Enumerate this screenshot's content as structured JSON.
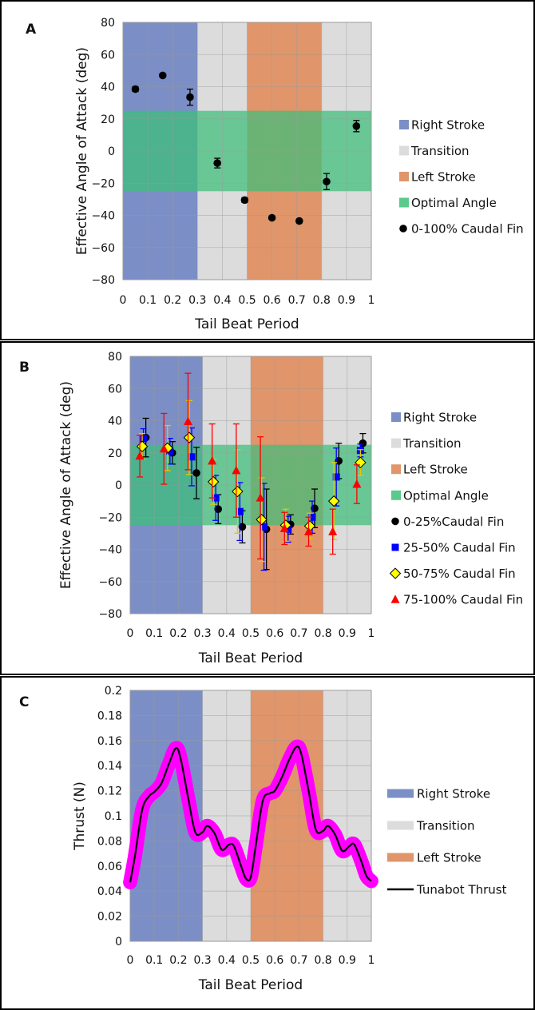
{
  "colors": {
    "right_stroke": "#7b8fc6",
    "transition": "#dcdcdc",
    "left_stroke": "#e0956a",
    "optimal": "#3cbf78",
    "series": [
      "#000000",
      "#0000ff",
      "#ffff00",
      "#ff0000"
    ],
    "thrust_band": "#ff00ff"
  },
  "chart_data": [
    {
      "panel": "A",
      "type": "scatter",
      "xlabel": "Tail Beat Period",
      "ylabel": "Effective Angle of Attack (deg)",
      "xlim": [
        0,
        1
      ],
      "ylim": [
        -80,
        80
      ],
      "xticks": [
        "0",
        "0.1",
        "0.2",
        "0.3",
        "0.4",
        "0.5",
        "0.6",
        "0.7",
        "0.8",
        "0.9",
        "1"
      ],
      "yticks": [
        "80",
        "60",
        "40",
        "20",
        "0",
        "−20",
        "−40",
        "−60",
        "−80"
      ],
      "regions": [
        {
          "label": "Right Stroke",
          "x": [
            0,
            0.3
          ],
          "y": [
            -80,
            80
          ]
        },
        {
          "label": "Transition",
          "x": [
            0.3,
            0.5
          ],
          "y": [
            -80,
            80
          ]
        },
        {
          "label": "Left Stroke",
          "x": [
            0.5,
            0.8
          ],
          "y": [
            -80,
            80
          ]
        },
        {
          "label": "Transition",
          "x": [
            0.8,
            1.0
          ],
          "y": [
            -80,
            80
          ]
        },
        {
          "label": "Optimal Angle",
          "x": [
            0,
            1
          ],
          "y": [
            -25,
            25
          ]
        }
      ],
      "legend": [
        "Right Stroke",
        "Transition",
        "Left Stroke",
        "Optimal Angle",
        "0-100% Caudal Fin"
      ],
      "series": [
        {
          "name": "0-100% Caudal Fin",
          "marker": "circle",
          "x": [
            0.05,
            0.16,
            0.27,
            0.38,
            0.49,
            0.6,
            0.71,
            0.82,
            0.94
          ],
          "y": [
            38.5,
            47,
            33.5,
            -7.5,
            -30.5,
            -41.5,
            -43.5,
            -19,
            15.5
          ],
          "err": [
            1.5,
            1,
            5,
            3,
            1.5,
            1,
            1,
            5,
            3.5
          ]
        }
      ]
    },
    {
      "panel": "B",
      "type": "scatter",
      "xlabel": "Tail Beat Period",
      "ylabel": "Effective Angle of Attack (deg)",
      "xlim": [
        0,
        1
      ],
      "ylim": [
        -80,
        80
      ],
      "xticks": [
        "0",
        "0.1",
        "0.2",
        "0.3",
        "0.4",
        "0.5",
        "0.6",
        "0.7",
        "0.8",
        "0.9",
        "1"
      ],
      "yticks": [
        "80",
        "60",
        "40",
        "20",
        "0",
        "−20",
        "−40",
        "−60",
        "−80"
      ],
      "regions": [
        {
          "label": "Right Stroke",
          "x": [
            0,
            0.3
          ],
          "y": [
            -80,
            80
          ]
        },
        {
          "label": "Transition",
          "x": [
            0.3,
            0.5
          ],
          "y": [
            -80,
            80
          ]
        },
        {
          "label": "Left Stroke",
          "x": [
            0.5,
            0.8
          ],
          "y": [
            -80,
            80
          ]
        },
        {
          "label": "Transition",
          "x": [
            0.8,
            1.0
          ],
          "y": [
            -80,
            80
          ]
        },
        {
          "label": "Optimal Angle",
          "x": [
            0,
            1
          ],
          "y": [
            -25,
            25
          ]
        }
      ],
      "legend": [
        "Right Stroke",
        "Transition",
        "Left Stroke",
        "Optimal Angle",
        "0-25%Caudal Fin",
        "25-50% Caudal Fin",
        "50-75% Caudal Fin",
        "75-100% Caudal Fin"
      ],
      "series": [
        {
          "name": "0-25%Caudal Fin",
          "marker": "circle",
          "x": [
            0.065,
            0.175,
            0.275,
            0.365,
            0.465,
            0.565,
            0.665,
            0.765,
            0.865,
            0.965
          ],
          "y": [
            29.5,
            20,
            7.5,
            -15,
            -26,
            -27.5,
            -24.5,
            -14.5,
            15,
            26
          ],
          "err": [
            12,
            7,
            16,
            9,
            10,
            25,
            6,
            12,
            11,
            6
          ]
        },
        {
          "name": "25-50% Caudal Fin",
          "marker": "square",
          "x": [
            0.055,
            0.165,
            0.255,
            0.355,
            0.455,
            0.555,
            0.655,
            0.755,
            0.855,
            0.955
          ],
          "y": [
            29,
            21,
            17.5,
            -8,
            -16.5,
            -26,
            -27.5,
            -20,
            5,
            21.5
          ],
          "err": [
            6,
            8,
            18,
            14,
            18,
            27,
            8,
            10,
            18,
            4
          ]
        },
        {
          "name": "50-75% Caudal Fin",
          "marker": "diamond",
          "x": [
            0.05,
            0.155,
            0.245,
            0.345,
            0.445,
            0.545,
            0.645,
            0.745,
            0.845,
            0.955
          ],
          "y": [
            24,
            23,
            29.5,
            2,
            -4,
            -21.5,
            -25,
            -25.5,
            -10,
            14
          ],
          "err": [
            8,
            14,
            23,
            14,
            26,
            26,
            10,
            8,
            24,
            8
          ]
        },
        {
          "name": "75-100% Caudal Fin",
          "marker": "triangle",
          "x": [
            0.04,
            0.14,
            0.24,
            0.34,
            0.44,
            0.54,
            0.64,
            0.74,
            0.84,
            0.94
          ],
          "y": [
            18,
            22.5,
            39.5,
            15,
            9,
            -8,
            -27,
            -29,
            -29,
            0.5
          ],
          "err": [
            13,
            22,
            30,
            23,
            29,
            38,
            10,
            9,
            14,
            12
          ]
        }
      ]
    },
    {
      "panel": "C",
      "type": "line",
      "xlabel": "Tail Beat Period",
      "ylabel": "Thrust (N)",
      "xlim": [
        0,
        1
      ],
      "ylim": [
        0,
        0.2
      ],
      "xticks": [
        "0",
        "0.1",
        "0.2",
        "0.3",
        "0.4",
        "0.5",
        "0.6",
        "0.7",
        "0.8",
        "0.9",
        "1"
      ],
      "yticks": [
        "0.2",
        "0.18",
        "0.16",
        "0.14",
        "0.12",
        "0.1",
        "0.08",
        "0.06",
        "0.04",
        "0.02",
        "0"
      ],
      "regions": [
        {
          "label": "Right Stroke",
          "x": [
            0,
            0.3
          ],
          "y": [
            0,
            0.2
          ]
        },
        {
          "label": "Transition",
          "x": [
            0.3,
            0.5
          ],
          "y": [
            0,
            0.2
          ]
        },
        {
          "label": "Left Stroke",
          "x": [
            0.5,
            0.8
          ],
          "y": [
            0,
            0.2
          ]
        },
        {
          "label": "Transition",
          "x": [
            0.8,
            1.0
          ],
          "y": [
            0,
            0.2
          ]
        }
      ],
      "legend": [
        "Right Stroke",
        "Transition",
        "Left Stroke",
        "Tunabot Thrust"
      ],
      "series": [
        {
          "name": "Tunabot Thrust",
          "x": [
            0,
            0.02,
            0.05,
            0.08,
            0.1,
            0.13,
            0.16,
            0.19,
            0.21,
            0.24,
            0.27,
            0.3,
            0.32,
            0.35,
            0.38,
            0.41,
            0.43,
            0.46,
            0.48,
            0.5,
            0.52,
            0.55,
            0.58,
            0.6,
            0.63,
            0.66,
            0.69,
            0.71,
            0.74,
            0.77,
            0.8,
            0.82,
            0.85,
            0.88,
            0.91,
            0.93,
            0.96,
            0.98,
            1.0
          ],
          "y": [
            0.047,
            0.068,
            0.105,
            0.116,
            0.119,
            0.126,
            0.141,
            0.154,
            0.145,
            0.115,
            0.087,
            0.087,
            0.092,
            0.086,
            0.073,
            0.077,
            0.076,
            0.06,
            0.05,
            0.051,
            0.075,
            0.112,
            0.118,
            0.12,
            0.131,
            0.145,
            0.155,
            0.149,
            0.12,
            0.089,
            0.088,
            0.092,
            0.085,
            0.072,
            0.076,
            0.077,
            0.063,
            0.052,
            0.048
          ],
          "band": 0.005
        }
      ]
    }
  ]
}
